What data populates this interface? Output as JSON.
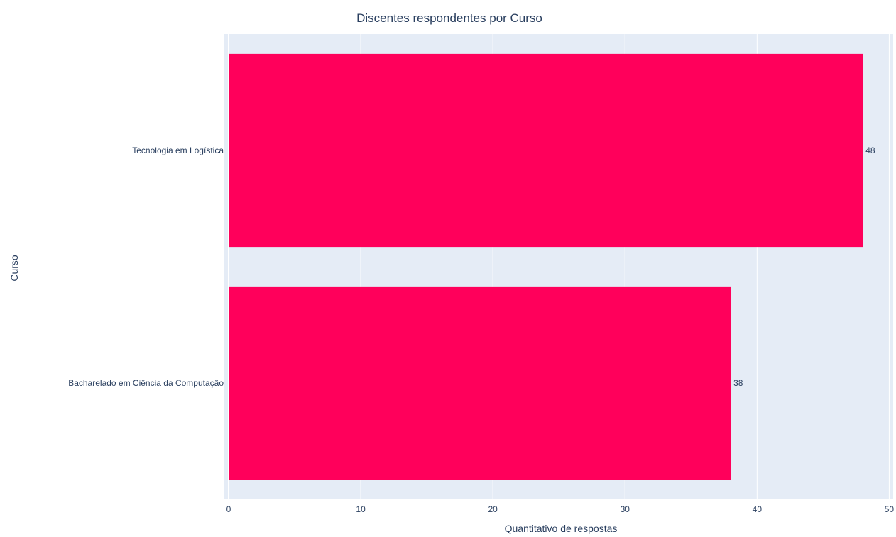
{
  "chart_data": {
    "type": "bar",
    "orientation": "horizontal",
    "title": "Discentes respondentes por Curso",
    "xlabel": "Quantitativo de respostas",
    "ylabel": "Curso",
    "categories": [
      "Tecnologia em Logística",
      "Bacharelado em Ciência da Computação"
    ],
    "values": [
      48,
      38
    ],
    "data_labels": [
      "48",
      "38"
    ],
    "xlim": [
      0,
      50.3
    ],
    "x_ticks": [
      0,
      10,
      20,
      30,
      40,
      50
    ],
    "x_tick_labels": [
      "0",
      "10",
      "20",
      "30",
      "40",
      "50"
    ],
    "grid": true,
    "legend": "none",
    "colors": {
      "bar": "#ff005b",
      "plot_background": "#e5ecf6",
      "grid": "#ffffff",
      "text": "#2a3f5f"
    }
  }
}
